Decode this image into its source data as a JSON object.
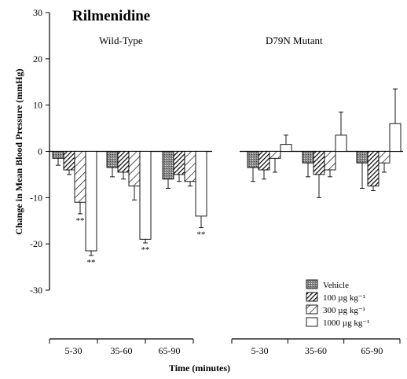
{
  "chart_data": {
    "type": "bar",
    "title": "Rilmenidine",
    "ylabel": "Change in Mean Blood Pressure (mmHg)",
    "xlabel": "Time (minutes)",
    "ylim": [
      -30,
      30
    ],
    "yticks": [
      30,
      20,
      10,
      0,
      -10,
      -20,
      -30
    ],
    "categories": [
      "5-30",
      "35-60",
      "65-90"
    ],
    "legend_position": "bottom-right",
    "grid": false,
    "legend": [
      {
        "name": "Vehicle",
        "fill": "shaded"
      },
      {
        "name": "100 µg kg⁻¹",
        "fill": "dense-hatch"
      },
      {
        "name": "300 µg kg⁻¹",
        "fill": "sparse-hatch"
      },
      {
        "name": "1000 µg kg⁻¹",
        "fill": "white"
      }
    ],
    "panels": [
      {
        "label": "Wild-Type",
        "series": [
          {
            "values": [
              -1.5,
              -3.5,
              -6.0
            ],
            "errors": [
              1.5,
              2.0,
              2.0
            ]
          },
          {
            "values": [
              -4.0,
              -4.5,
              -5.0
            ],
            "errors": [
              1.0,
              1.5,
              1.5
            ]
          },
          {
            "values": [
              -11.0,
              -7.5,
              -6.5
            ],
            "errors": [
              2.5,
              3.0,
              1.0
            ]
          },
          {
            "values": [
              -21.5,
              -19.0,
              -14.0
            ],
            "errors": [
              1.0,
              0.8,
              2.5
            ]
          }
        ],
        "significance": [
          {
            "series": 2,
            "category": 0,
            "label": "**"
          },
          {
            "series": 3,
            "category": 0,
            "label": "**"
          },
          {
            "series": 3,
            "category": 1,
            "label": "**"
          },
          {
            "series": 3,
            "category": 2,
            "label": "**"
          }
        ]
      },
      {
        "label": "D79N Mutant",
        "series": [
          {
            "values": [
              -3.5,
              -2.5,
              -2.5
            ],
            "errors": [
              3.0,
              3.0,
              5.5
            ]
          },
          {
            "values": [
              -4.0,
              -5.0,
              -7.5
            ],
            "errors": [
              2.0,
              5.0,
              1.0
            ]
          },
          {
            "values": [
              -1.5,
              -4.0,
              -2.5
            ],
            "errors": [
              3.0,
              1.5,
              2.0
            ]
          },
          {
            "values": [
              1.5,
              3.5,
              6.0
            ],
            "errors": [
              2.0,
              5.0,
              7.5
            ]
          }
        ],
        "significance": []
      }
    ]
  }
}
